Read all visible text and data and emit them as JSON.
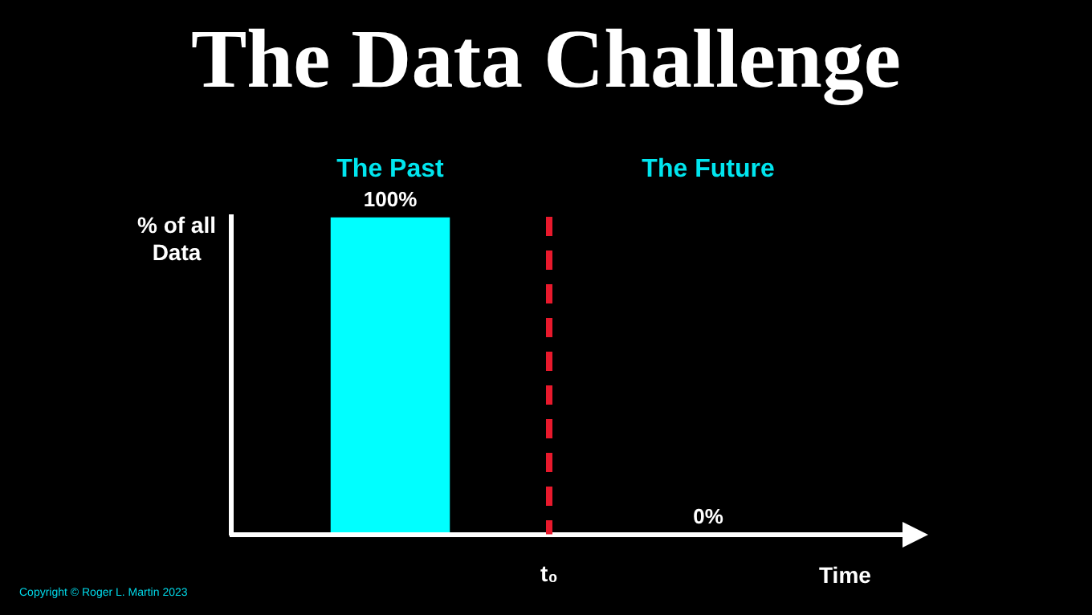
{
  "chart_data": {
    "type": "bar",
    "title": "The Data Challenge",
    "xlabel": "Time",
    "ylabel": "% of all Data",
    "categories": [
      "The Past",
      "The Future"
    ],
    "values": [
      100,
      0
    ],
    "color": "#00ffff",
    "ylim": [
      0,
      100
    ],
    "data_labels": true,
    "value_labels": [
      "100%",
      "0%"
    ],
    "legend": false,
    "annotations": [
      "t₀",
      "Copyright © Roger L. Martin 2023"
    ]
  }
}
